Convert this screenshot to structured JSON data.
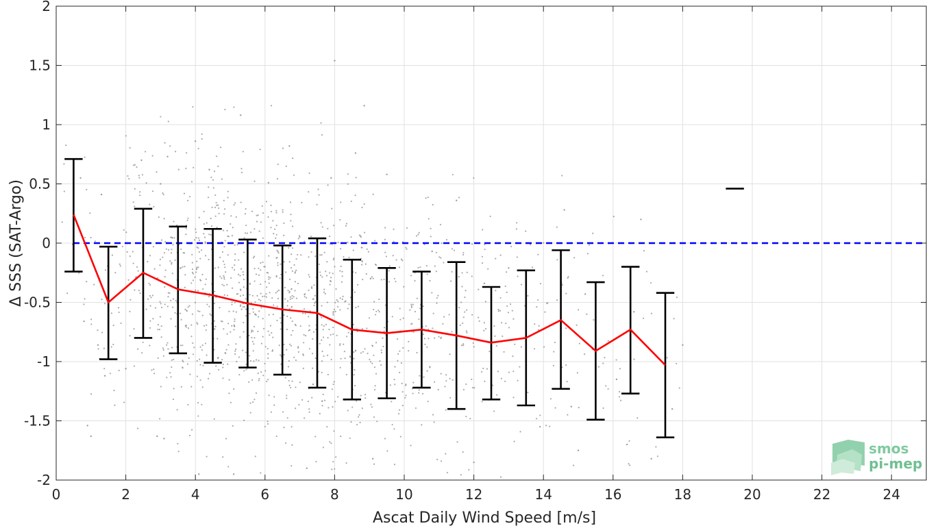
{
  "chart_data": {
    "type": "scatter",
    "xlabel": "Ascat Daily Wind Speed [m/s]",
    "ylabel": "Δ SSS (SAT-Argo)",
    "xlim": [
      0,
      25
    ],
    "ylim": [
      -2,
      2
    ],
    "xticks": [
      0,
      2,
      4,
      6,
      8,
      10,
      12,
      14,
      16,
      18,
      20,
      22,
      24
    ],
    "yticks": [
      -2,
      -1.5,
      -1,
      -0.5,
      0,
      0.5,
      1,
      1.5,
      2
    ],
    "grid": true,
    "reference_line": {
      "y": 0,
      "color": "#0000ff",
      "style": "dashed"
    },
    "mean_series": {
      "color": "#ff0000",
      "x": [
        0.5,
        1.5,
        2.5,
        3.5,
        4.5,
        5.5,
        6.5,
        7.5,
        8.5,
        9.5,
        10.5,
        11.5,
        12.5,
        13.5,
        14.5,
        15.5,
        16.5,
        17.5
      ],
      "y": [
        0.24,
        -0.5,
        -0.25,
        -0.39,
        -0.44,
        -0.51,
        -0.56,
        -0.59,
        -0.73,
        -0.76,
        -0.73,
        -0.78,
        -0.84,
        -0.8,
        -0.65,
        -0.91,
        -0.73,
        -1.03
      ]
    },
    "error_bars": {
      "color": "#000000",
      "x": [
        0.5,
        1.5,
        2.5,
        3.5,
        4.5,
        5.5,
        6.5,
        7.5,
        8.5,
        9.5,
        10.5,
        11.5,
        12.5,
        13.5,
        14.5,
        15.5,
        16.5,
        17.5,
        19.5
      ],
      "lower": [
        -0.24,
        -0.98,
        -0.8,
        -0.93,
        -1.01,
        -1.05,
        -1.11,
        -1.22,
        -1.32,
        -1.31,
        -1.22,
        -1.4,
        -1.32,
        -1.37,
        -1.23,
        -1.49,
        -1.27,
        -1.64,
        0.46
      ],
      "upper": [
        0.71,
        -0.03,
        0.29,
        0.14,
        0.12,
        0.03,
        -0.02,
        0.04,
        -0.14,
        -0.21,
        -0.24,
        -0.16,
        -0.37,
        -0.23,
        -0.06,
        -0.33,
        -0.2,
        -0.42,
        0.46
      ]
    },
    "scatter": {
      "color": "#8c8c8c",
      "points": [
        [
          8.0,
          1.54
        ],
        [
          8.85,
          1.16
        ],
        [
          5.3,
          1.08
        ],
        [
          4.0,
          0.86
        ],
        [
          6.7,
          0.82
        ],
        [
          2.45,
          0.7
        ],
        [
          3.2,
          0.73
        ],
        [
          8.6,
          0.76
        ],
        [
          7.9,
          0.55
        ],
        [
          0.7,
          0.55
        ],
        [
          9.5,
          0.58
        ],
        [
          4.4,
          0.62
        ],
        [
          6.1,
          0.51
        ],
        [
          3.0,
          0.5
        ],
        [
          11.5,
          0.36
        ],
        [
          1.3,
          0.41
        ],
        [
          14.6,
          0.28
        ],
        [
          16.8,
          0.2
        ],
        [
          18.0,
          -0.86
        ],
        [
          17.7,
          -1.4
        ],
        [
          16.4,
          -1.7
        ],
        [
          15.0,
          -1.75
        ],
        [
          12.0,
          -1.85
        ],
        [
          9.1,
          -1.82
        ],
        [
          7.2,
          -1.9
        ],
        [
          5.1,
          -1.95
        ],
        [
          4.1,
          -1.95
        ],
        [
          2.9,
          -1.63
        ],
        [
          2.0,
          -1.06
        ],
        [
          1.2,
          -0.86
        ],
        [
          0.8,
          -0.66
        ],
        [
          1.0,
          -1.63
        ],
        [
          0.9,
          -1.54
        ],
        [
          1.4,
          -1.12
        ],
        [
          3.1,
          -1.65
        ],
        [
          16.1,
          -1.15
        ],
        [
          17.1,
          -1.82
        ],
        [
          15.2,
          -0.43
        ],
        [
          13.0,
          -0.21
        ],
        [
          12.3,
          -0.34
        ],
        [
          10.8,
          -0.07
        ],
        [
          17.5,
          -0.85
        ],
        [
          16.6,
          -0.58
        ],
        [
          14.8,
          -1.38
        ],
        [
          13.9,
          -1.55
        ]
      ]
    }
  },
  "logo": {
    "line1": "smos",
    "line2": "pi-mep"
  }
}
